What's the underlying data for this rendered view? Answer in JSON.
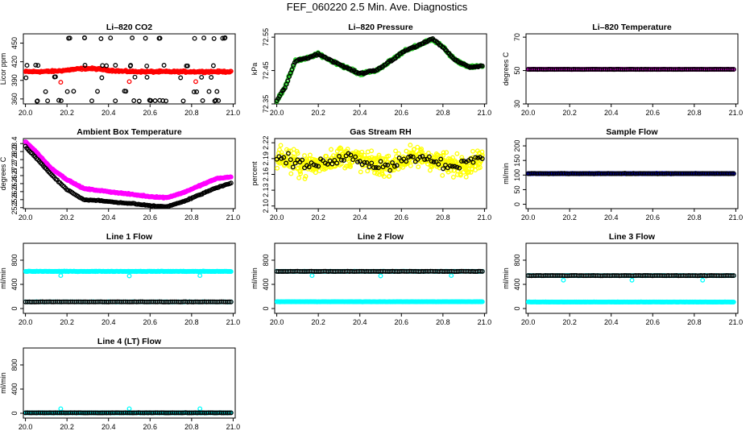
{
  "page_title": "FEF_060220  2.5 Min. Ave. Diagnostics",
  "chart_data": [
    {
      "id": "co2",
      "type": "scatter",
      "title": "Li–820 CO2",
      "ylabel": "Licor ppm",
      "ylim": [
        352,
        465
      ],
      "yticks": [
        360,
        390,
        420,
        450
      ],
      "xlim": [
        19.99,
        21.01
      ],
      "xticks": [
        "20.0",
        "20.2",
        "20.4",
        "20.6",
        "20.8",
        "21.0"
      ],
      "series": [
        {
          "name": "co2-a",
          "color": "#ff0000",
          "pattern": "band",
          "y0": 404,
          "amp": 5,
          "jit": 2
        },
        {
          "name": "co2-b",
          "color": "#000000",
          "pattern": "levels",
          "levels": [
            357,
            372,
            395,
            414,
            458
          ],
          "n": 70
        }
      ]
    },
    {
      "id": "pressure",
      "type": "scatter",
      "title": "Li–820 Pressure",
      "ylabel": "kPa",
      "ylim": [
        72.35,
        72.56
      ],
      "yticks": [
        72.35,
        72.45,
        72.55
      ],
      "xlim": [
        19.99,
        21.01
      ],
      "xticks": [
        "20.0",
        "20.2",
        "20.4",
        "20.6",
        "20.8",
        "21.0"
      ],
      "series": [
        {
          "name": "press-a",
          "color": "#22cc22",
          "pattern": "wave",
          "fn": "pressure",
          "jit": 0.006,
          "n": 330
        },
        {
          "name": "press-b",
          "color": "#000000",
          "pattern": "wave",
          "fn": "pressure",
          "jit": 0.004,
          "n": 150
        }
      ]
    },
    {
      "id": "lit",
      "type": "scatter",
      "title": "Li–820 Temperature",
      "ylabel": "degrees C",
      "ylim": [
        30,
        72
      ],
      "yticks": [
        30,
        50,
        70
      ],
      "xlim": [
        19.99,
        21.01
      ],
      "xticks": [
        "20.0",
        "20.2",
        "20.4",
        "20.6",
        "20.8",
        "21.0"
      ],
      "series": [
        {
          "name": "lit-a",
          "color": "#ff00ff",
          "pattern": "flat",
          "y0": 50.7,
          "jit": 0.1,
          "n": 220
        },
        {
          "name": "lit-b",
          "color": "#000000",
          "pattern": "flat",
          "y0": 50.7,
          "jit": 0.1,
          "n": 110
        }
      ]
    },
    {
      "id": "abt",
      "type": "scatter",
      "title": "Ambient Box Temperature",
      "ylabel": "degrees C",
      "ylim": [
        25.15,
        28.65
      ],
      "yticks": [
        25.2,
        25.6,
        26.0,
        26.4,
        26.8,
        27.2,
        27.6,
        28.0,
        28.4
      ],
      "xlim": [
        19.99,
        21.01
      ],
      "xticks": [
        "20.0",
        "20.2",
        "20.4",
        "20.6",
        "20.8",
        "21.0"
      ],
      "series": [
        {
          "name": "abt-a",
          "color": "#ff00ff",
          "pattern": "wave",
          "fn": "abtA",
          "jit": 0.04,
          "n": 330
        },
        {
          "name": "abt-b",
          "color": "#000000",
          "pattern": "wave",
          "fn": "abtB",
          "jit": 0.03,
          "n": 150
        }
      ]
    },
    {
      "id": "rh",
      "type": "scatter",
      "title": "Gas Stream RH",
      "ylabel": "percent",
      "ylim": [
        2.095,
        2.228
      ],
      "yticks": [
        2.1,
        2.13,
        2.16,
        2.19,
        2.22
      ],
      "xlim": [
        19.99,
        21.01
      ],
      "xticks": [
        "20.0",
        "20.2",
        "20.4",
        "20.6",
        "20.8",
        "21.0"
      ],
      "series": [
        {
          "name": "rh-a",
          "color": "#ffff00",
          "pattern": "noise",
          "fn": "rh",
          "jit": 0.03,
          "n": 520
        },
        {
          "name": "rh-b",
          "color": "#000000",
          "pattern": "noise",
          "fn": "rh",
          "jit": 0.014,
          "n": 90
        }
      ]
    },
    {
      "id": "sflow",
      "type": "scatter",
      "title": "Sample Flow",
      "ylabel": "ml/min",
      "ylim": [
        -15,
        225
      ],
      "yticks": [
        0,
        50,
        100,
        150,
        200
      ],
      "xlim": [
        19.99,
        21.01
      ],
      "xticks": [
        "20.0",
        "20.2",
        "20.4",
        "20.6",
        "20.8",
        "21.0"
      ],
      "series": [
        {
          "name": "sflow-a",
          "color": "#0000ff",
          "pattern": "flat",
          "y0": 105,
          "jit": 1.2,
          "n": 260
        },
        {
          "name": "sflow-b",
          "color": "#000000",
          "pattern": "flat",
          "y0": 105,
          "jit": 1.2,
          "n": 120
        }
      ]
    },
    {
      "id": "l1",
      "type": "scatter",
      "title": "Line 1 Flow",
      "ylabel": "ml/min",
      "ylim": [
        -80,
        1080
      ],
      "yticks": [
        0,
        400,
        800
      ],
      "xlim": [
        19.99,
        21.01
      ],
      "xticks": [
        "20.0",
        "20.2",
        "20.4",
        "20.6",
        "20.8",
        "21.0"
      ],
      "series": [
        {
          "name": "l1-a",
          "color": "#00ffff",
          "pattern": "flat",
          "y0": 615,
          "jit": 6,
          "n": 260,
          "outliers": [
            [
              20.17,
              545
            ],
            [
              20.5,
              540
            ],
            [
              20.84,
              545
            ]
          ]
        },
        {
          "name": "l1-b",
          "color": "#00ffff",
          "pattern": "flat",
          "y0": 110,
          "jit": 3,
          "n": 110
        },
        {
          "name": "l1-c",
          "color": "#000000",
          "pattern": "flat",
          "y0": 110,
          "jit": 3,
          "n": 110
        }
      ]
    },
    {
      "id": "l2",
      "type": "scatter",
      "title": "Line 2 Flow",
      "ylabel": "ml/min",
      "ylim": [
        -80,
        1080
      ],
      "yticks": [
        0,
        400,
        800
      ],
      "xlim": [
        19.99,
        21.01
      ],
      "xticks": [
        "20.0",
        "20.2",
        "20.4",
        "20.6",
        "20.8",
        "21.0"
      ],
      "series": [
        {
          "name": "l2-a",
          "color": "#00ffff",
          "pattern": "flat",
          "y0": 615,
          "jit": 4,
          "n": 120,
          "outliers": [
            [
              20.17,
              545
            ],
            [
              20.5,
              540
            ],
            [
              20.84,
              545
            ]
          ]
        },
        {
          "name": "l2-b",
          "color": "#000000",
          "pattern": "flat",
          "y0": 615,
          "jit": 4,
          "n": 120
        },
        {
          "name": "l2-c",
          "color": "#00ffff",
          "pattern": "flat",
          "y0": 112,
          "jit": 3,
          "n": 260
        }
      ]
    },
    {
      "id": "l3",
      "type": "scatter",
      "title": "Line 3 Flow",
      "ylabel": "ml/min",
      "ylim": [
        -80,
        1080
      ],
      "yticks": [
        0,
        400,
        800
      ],
      "xlim": [
        19.99,
        21.01
      ],
      "xticks": [
        "20.0",
        "20.2",
        "20.4",
        "20.6",
        "20.8",
        "21.0"
      ],
      "series": [
        {
          "name": "l3-a",
          "color": "#00ffff",
          "pattern": "flat",
          "y0": 545,
          "jit": 4,
          "n": 120,
          "outliers": [
            [
              20.17,
              470
            ],
            [
              20.5,
              470
            ],
            [
              20.84,
              470
            ]
          ]
        },
        {
          "name": "l3-b",
          "color": "#000000",
          "pattern": "flat",
          "y0": 545,
          "jit": 4,
          "n": 120
        },
        {
          "name": "l3-c",
          "color": "#00ffff",
          "pattern": "flat",
          "y0": 108,
          "jit": 3,
          "n": 260
        }
      ]
    },
    {
      "id": "l4",
      "type": "scatter",
      "title": "Line 4 (LT) Flow",
      "ylabel": "ml/min",
      "ylim": [
        -80,
        1080
      ],
      "yticks": [
        0,
        400,
        800
      ],
      "xlim": [
        19.99,
        21.01
      ],
      "xticks": [
        "20.0",
        "20.2",
        "20.4",
        "20.6",
        "20.8",
        "21.0"
      ],
      "series": [
        {
          "name": "l4-a",
          "color": "#00ffff",
          "pattern": "flat",
          "y0": 8,
          "jit": 3,
          "n": 200,
          "outliers": [
            [
              20.17,
              75
            ],
            [
              20.5,
              75
            ],
            [
              20.84,
              75
            ]
          ]
        },
        {
          "name": "l4-b",
          "color": "#000000",
          "pattern": "flat",
          "y0": 8,
          "jit": 3,
          "n": 110
        }
      ]
    }
  ]
}
